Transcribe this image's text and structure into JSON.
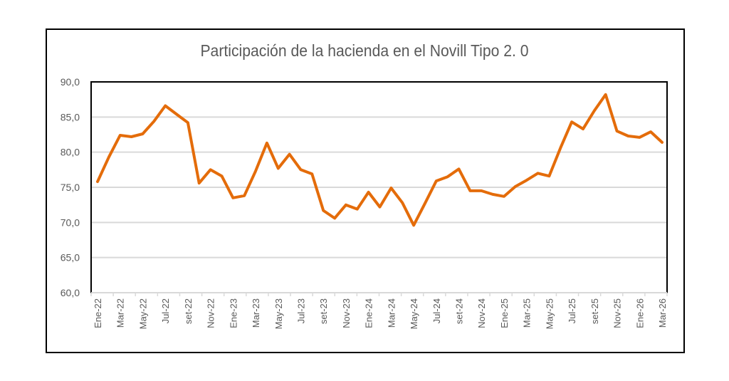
{
  "chart_data": {
    "type": "line",
    "title": "Participación de la hacienda en el Novill  Tipo 2. 0",
    "xlabel": "",
    "ylabel": "",
    "ylim": [
      60,
      90
    ],
    "y_ticks": [
      "60,0",
      "65,0",
      "70,0",
      "75,0",
      "80,0",
      "85,0",
      "90,0"
    ],
    "y_tick_values": [
      60,
      65,
      70,
      75,
      80,
      85,
      90
    ],
    "grid": true,
    "x_tick_labels": [
      "Ene-22",
      "Mar-22",
      "May-22",
      "Jul-22",
      "set-22",
      "Nov-22",
      "Ene-23",
      "Mar-23",
      "May-23",
      "Jul-23",
      "set-23",
      "Nov-23",
      "Ene-24",
      "Mar-24",
      "May-24",
      "Jul-24",
      "set-24",
      "Nov-24",
      "Ene-25",
      "Mar-25",
      "May-25",
      "Jul-25",
      "set-25",
      "Nov-25",
      "Ene-26",
      "Mar-26"
    ],
    "series": [
      {
        "name": "Participación",
        "color": "#E46C0A",
        "values": [
          75.8,
          79.3,
          82.4,
          82.2,
          82.6,
          84.4,
          86.6,
          85.4,
          84.2,
          75.6,
          77.5,
          76.6,
          73.5,
          73.8,
          77.3,
          81.3,
          77.7,
          79.7,
          77.5,
          76.9,
          71.7,
          70.6,
          72.5,
          71.9,
          74.3,
          72.2,
          74.9,
          72.8,
          69.6,
          72.7,
          75.9,
          76.5,
          77.6,
          74.5,
          74.5,
          74.0,
          73.7,
          75.1,
          76.0,
          77.0,
          76.6,
          80.6,
          84.3,
          83.3,
          85.9,
          88.2,
          83.0,
          82.3,
          82.1,
          82.9,
          81.4
        ]
      }
    ]
  }
}
